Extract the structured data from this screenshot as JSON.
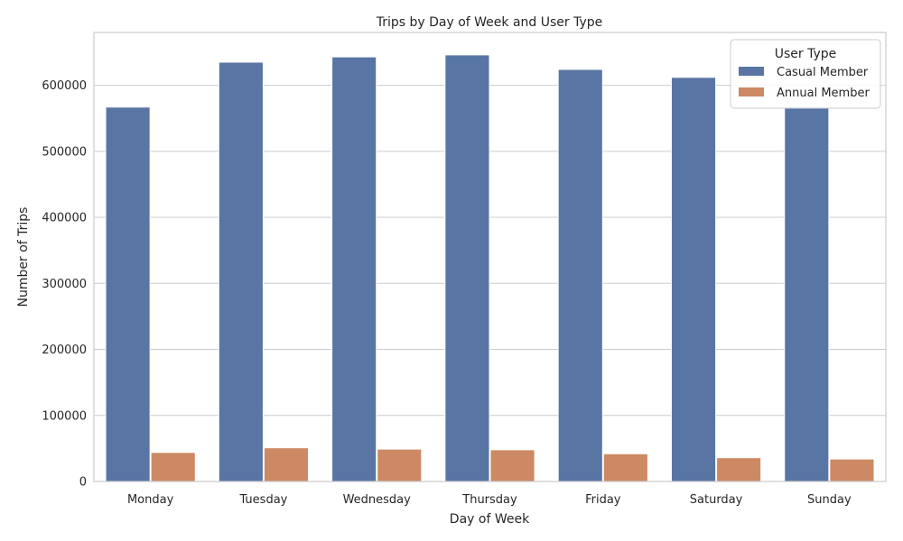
{
  "chart_data": {
    "type": "bar",
    "title": "Trips by Day of Week and User Type",
    "xlabel": "Day of Week",
    "ylabel": "Number of Trips",
    "categories": [
      "Monday",
      "Tuesday",
      "Wednesday",
      "Thursday",
      "Friday",
      "Saturday",
      "Sunday"
    ],
    "series": [
      {
        "name": "Casual Member",
        "color": "#5875a4",
        "values": [
          567000,
          635000,
          643000,
          646000,
          624000,
          612000,
          567000
        ]
      },
      {
        "name": "Annual Member",
        "color": "#cc8963",
        "values": [
          44000,
          51000,
          49000,
          48000,
          42000,
          36000,
          34000
        ]
      }
    ],
    "ylim": [
      0,
      680000
    ],
    "yticks": [
      0,
      100000,
      200000,
      300000,
      400000,
      500000,
      600000
    ],
    "ytick_labels": [
      "0",
      "100000",
      "200000",
      "300000",
      "400000",
      "500000",
      "600000"
    ],
    "grid": "y",
    "legend": {
      "title": "User Type",
      "position": "top-right"
    }
  }
}
